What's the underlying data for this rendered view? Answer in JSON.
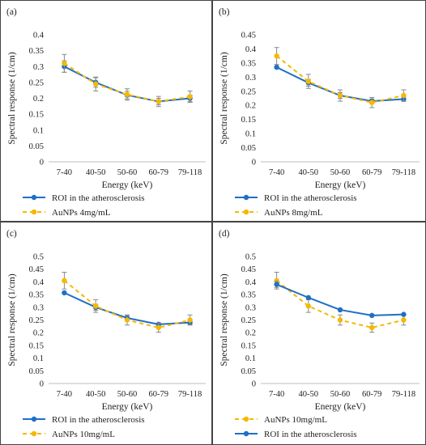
{
  "chart_data": [
    {
      "type": "line",
      "panel_label": "(a)",
      "categories": [
        "7-40",
        "40-50",
        "50-60",
        "60-79",
        "79-118"
      ],
      "xlabel": "Energy (keV)",
      "ylabel": "Spectral response (1/cm)",
      "ylim": [
        0,
        0.4
      ],
      "yticks": [
        "0",
        "0.05",
        "0.1",
        "0.15",
        "0.2",
        "0.25",
        "0.3",
        "0.35",
        "0.4"
      ],
      "grid": false,
      "legend_position": "bottom",
      "series": [
        {
          "name": "ROI in the atherosclerosis",
          "color": "#1f6fc5",
          "style": "solid",
          "values": [
            0.3,
            0.25,
            0.21,
            0.19,
            0.2
          ],
          "error": [
            0.018,
            0.015,
            0.012,
            0.01,
            0.01
          ]
        },
        {
          "name": "AuNPs 4mg/mL",
          "color": "#f5b800",
          "style": "dashed",
          "values": [
            0.31,
            0.245,
            0.212,
            0.19,
            0.205
          ],
          "error": [
            0.028,
            0.022,
            0.018,
            0.016,
            0.018
          ]
        }
      ]
    },
    {
      "type": "line",
      "panel_label": "(b)",
      "categories": [
        "7-40",
        "40-50",
        "50-60",
        "60-79",
        "79-118"
      ],
      "xlabel": "Energy (keV)",
      "ylabel": "Spectral response (1/cm)",
      "ylim": [
        0,
        0.45
      ],
      "yticks": [
        "0",
        "0.05",
        "0.1",
        "0.15",
        "0.2",
        "0.25",
        "0.3",
        "0.35",
        "0.4",
        "0.45"
      ],
      "grid": false,
      "legend_position": "bottom",
      "series": [
        {
          "name": "ROI in the atherosclerosis",
          "color": "#1f6fc5",
          "style": "solid",
          "values": [
            0.335,
            0.28,
            0.235,
            0.215,
            0.222
          ],
          "error": [
            0.0,
            0.012,
            0.01,
            0.008,
            0.008
          ]
        },
        {
          "name": "AuNPs 8mg/mL",
          "color": "#f5b800",
          "style": "dashed",
          "values": [
            0.375,
            0.285,
            0.235,
            0.21,
            0.235
          ],
          "error": [
            0.03,
            0.025,
            0.02,
            0.018,
            0.02
          ]
        }
      ]
    },
    {
      "type": "line",
      "panel_label": "(c)",
      "categories": [
        "7-40",
        "40-50",
        "50-60",
        "60-79",
        "79-118"
      ],
      "xlabel": "Energy (keV)",
      "ylabel": "Spectral response (1/cm)",
      "ylim": [
        0,
        0.5
      ],
      "yticks": [
        "0",
        "0.05",
        "0.1",
        "0.15",
        "0.2",
        "0.25",
        "0.3",
        "0.35",
        "0.4",
        "0.45",
        "0.5"
      ],
      "grid": false,
      "legend_position": "bottom",
      "series": [
        {
          "name": "ROI in the atherosclerosis",
          "color": "#1f6fc5",
          "style": "solid",
          "values": [
            0.357,
            0.3,
            0.258,
            0.233,
            0.24
          ],
          "error": [
            0.0,
            0.012,
            0.01,
            0.006,
            0.008
          ]
        },
        {
          "name": "AuNPs 10mg/mL",
          "color": "#f5b800",
          "style": "dashed",
          "values": [
            0.405,
            0.305,
            0.25,
            0.22,
            0.25
          ],
          "error": [
            0.033,
            0.025,
            0.02,
            0.018,
            0.02
          ]
        }
      ]
    },
    {
      "type": "line",
      "panel_label": "(d)",
      "categories": [
        "7-40",
        "40-50",
        "50-60",
        "60-79",
        "79-118"
      ],
      "xlabel": "Energy (keV)",
      "ylabel": "Spectral response (1/cm)",
      "ylim": [
        0,
        0.5
      ],
      "yticks": [
        "0",
        "0.05",
        "0.1",
        "0.15",
        "0.2",
        "0.25",
        "0.3",
        "0.35",
        "0.4",
        "0.45",
        "0.5"
      ],
      "grid": false,
      "legend_position": "bottom",
      "series": [
        {
          "name": "AuNPs 10mg/mL",
          "color": "#f5b800",
          "style": "dashed",
          "values": [
            0.405,
            0.305,
            0.25,
            0.22,
            0.25
          ],
          "error": [
            0.033,
            0.025,
            0.02,
            0.018,
            0.02
          ]
        },
        {
          "name": "ROI in the atherosclerosis",
          "color": "#1f6fc5",
          "style": "solid",
          "values": [
            0.39,
            0.338,
            0.29,
            0.268,
            0.272
          ],
          "error": [
            0.012,
            0.0,
            0.0,
            0.0,
            0.0
          ]
        }
      ]
    }
  ]
}
